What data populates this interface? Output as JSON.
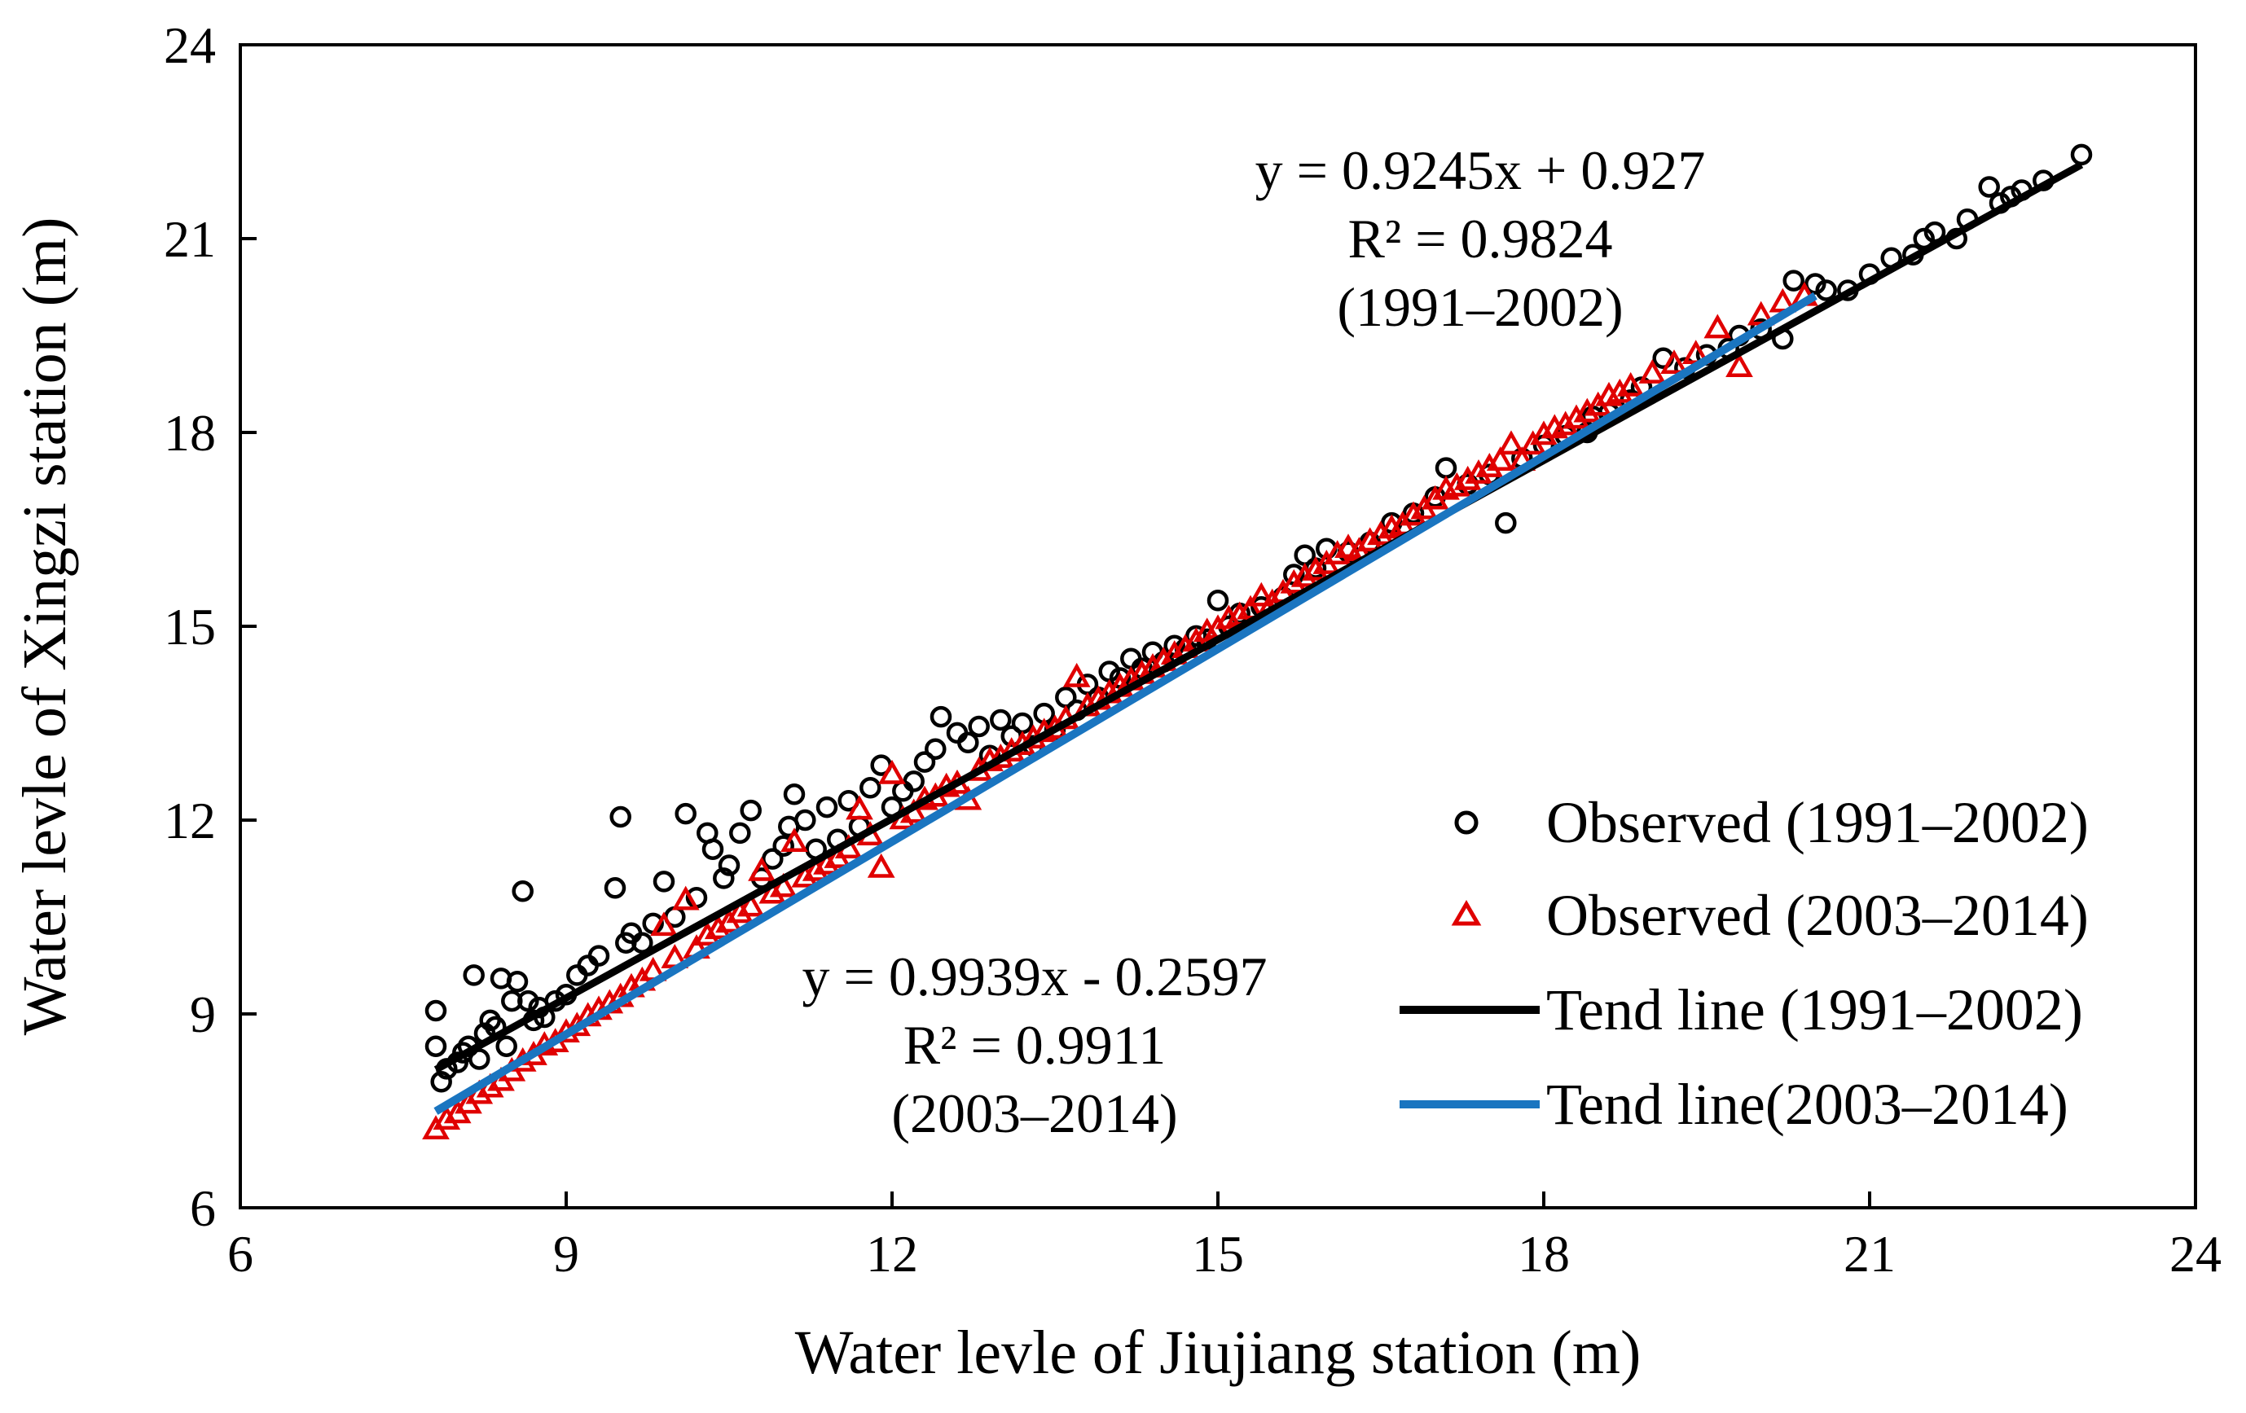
{
  "chart_data": {
    "type": "scatter",
    "title": "",
    "xlabel": "Water levle of Jiujiang station (m)",
    "ylabel": "Water levle of Xingzi station (m)",
    "xlim": [
      6,
      24
    ],
    "ylim": [
      6,
      24
    ],
    "xticks": [
      6,
      9,
      12,
      15,
      18,
      21,
      24
    ],
    "yticks": [
      6,
      9,
      12,
      15,
      18,
      21,
      24
    ],
    "grid": false,
    "legend_position": "bottom-right",
    "series": [
      {
        "name": "Observed (1991–2002)",
        "kind": "scatter",
        "marker": "circle-open",
        "color": "#000000",
        "points": [
          [
            7.8,
            9.05
          ],
          [
            7.8,
            8.5
          ],
          [
            7.85,
            7.95
          ],
          [
            7.9,
            8.15
          ],
          [
            8.0,
            8.25
          ],
          [
            8.05,
            8.4
          ],
          [
            8.1,
            8.5
          ],
          [
            8.15,
            9.6
          ],
          [
            8.2,
            8.3
          ],
          [
            8.25,
            8.7
          ],
          [
            8.3,
            8.9
          ],
          [
            8.35,
            8.8
          ],
          [
            8.4,
            9.55
          ],
          [
            8.45,
            8.5
          ],
          [
            8.5,
            9.2
          ],
          [
            8.55,
            9.5
          ],
          [
            8.6,
            10.9
          ],
          [
            8.65,
            9.2
          ],
          [
            8.7,
            8.9
          ],
          [
            8.75,
            9.1
          ],
          [
            8.8,
            8.95
          ],
          [
            8.9,
            9.2
          ],
          [
            9.0,
            9.3
          ],
          [
            9.1,
            9.6
          ],
          [
            9.2,
            9.75
          ],
          [
            9.3,
            9.9
          ],
          [
            9.45,
            10.95
          ],
          [
            9.5,
            12.05
          ],
          [
            9.55,
            10.1
          ],
          [
            9.6,
            10.25
          ],
          [
            9.7,
            10.1
          ],
          [
            9.8,
            10.4
          ],
          [
            9.9,
            11.05
          ],
          [
            10.0,
            10.5
          ],
          [
            10.1,
            12.1
          ],
          [
            10.2,
            10.8
          ],
          [
            10.3,
            11.8
          ],
          [
            10.35,
            11.55
          ],
          [
            10.45,
            11.1
          ],
          [
            10.5,
            11.3
          ],
          [
            10.6,
            11.8
          ],
          [
            10.7,
            12.15
          ],
          [
            10.8,
            11.1
          ],
          [
            10.9,
            11.4
          ],
          [
            11.0,
            11.6
          ],
          [
            11.05,
            11.9
          ],
          [
            11.1,
            12.4
          ],
          [
            11.2,
            12.0
          ],
          [
            11.3,
            11.55
          ],
          [
            11.4,
            12.2
          ],
          [
            11.5,
            11.7
          ],
          [
            11.6,
            12.3
          ],
          [
            11.7,
            11.9
          ],
          [
            11.8,
            12.5
          ],
          [
            11.9,
            12.85
          ],
          [
            12.0,
            12.2
          ],
          [
            12.1,
            12.45
          ],
          [
            12.2,
            12.6
          ],
          [
            12.3,
            12.9
          ],
          [
            12.4,
            13.1
          ],
          [
            12.45,
            13.6
          ],
          [
            12.6,
            13.35
          ],
          [
            12.7,
            13.2
          ],
          [
            12.8,
            13.45
          ],
          [
            12.9,
            13.0
          ],
          [
            13.0,
            13.55
          ],
          [
            13.1,
            13.3
          ],
          [
            13.2,
            13.5
          ],
          [
            13.3,
            13.15
          ],
          [
            13.4,
            13.65
          ],
          [
            13.5,
            13.4
          ],
          [
            13.6,
            13.9
          ],
          [
            13.7,
            13.7
          ],
          [
            13.8,
            14.1
          ],
          [
            13.9,
            13.9
          ],
          [
            14.0,
            14.3
          ],
          [
            14.1,
            14.2
          ],
          [
            14.2,
            14.5
          ],
          [
            14.3,
            14.35
          ],
          [
            14.4,
            14.6
          ],
          [
            14.5,
            14.45
          ],
          [
            14.6,
            14.7
          ],
          [
            14.7,
            14.65
          ],
          [
            14.8,
            14.85
          ],
          [
            14.9,
            14.8
          ],
          [
            15.0,
            15.4
          ],
          [
            15.1,
            15.0
          ],
          [
            15.2,
            15.2
          ],
          [
            15.4,
            15.3
          ],
          [
            15.6,
            15.45
          ],
          [
            15.7,
            15.8
          ],
          [
            15.8,
            16.1
          ],
          [
            15.9,
            15.9
          ],
          [
            16.0,
            16.2
          ],
          [
            16.2,
            16.15
          ],
          [
            16.4,
            16.3
          ],
          [
            16.6,
            16.6
          ],
          [
            16.8,
            16.75
          ],
          [
            17.0,
            17.0
          ],
          [
            17.1,
            17.45
          ],
          [
            17.3,
            17.2
          ],
          [
            17.5,
            17.35
          ],
          [
            17.65,
            16.6
          ],
          [
            17.8,
            17.6
          ],
          [
            18.0,
            17.8
          ],
          [
            18.2,
            17.95
          ],
          [
            18.4,
            18.0
          ],
          [
            18.45,
            18.25
          ],
          [
            18.6,
            18.3
          ],
          [
            18.8,
            18.5
          ],
          [
            18.9,
            18.7
          ],
          [
            19.1,
            19.15
          ],
          [
            19.3,
            19.0
          ],
          [
            19.5,
            19.2
          ],
          [
            19.7,
            19.3
          ],
          [
            19.8,
            19.5
          ],
          [
            20.0,
            19.6
          ],
          [
            20.2,
            19.45
          ],
          [
            20.3,
            20.35
          ],
          [
            20.5,
            20.3
          ],
          [
            20.6,
            20.2
          ],
          [
            20.8,
            20.2
          ],
          [
            21.0,
            20.45
          ],
          [
            21.2,
            20.7
          ],
          [
            21.4,
            20.75
          ],
          [
            21.5,
            21.0
          ],
          [
            21.6,
            21.1
          ],
          [
            21.8,
            21.0
          ],
          [
            21.9,
            21.3
          ],
          [
            22.1,
            21.8
          ],
          [
            22.2,
            21.55
          ],
          [
            22.3,
            21.65
          ],
          [
            22.4,
            21.75
          ],
          [
            22.6,
            21.9
          ],
          [
            22.95,
            22.3
          ]
        ]
      },
      {
        "name": "Observed (2003–2014)",
        "kind": "scatter",
        "marker": "triangle-open",
        "color": "#e00000",
        "points": [
          [
            7.8,
            7.2
          ],
          [
            7.9,
            7.35
          ],
          [
            8.0,
            7.45
          ],
          [
            8.1,
            7.6
          ],
          [
            8.2,
            7.75
          ],
          [
            8.3,
            7.85
          ],
          [
            8.4,
            7.95
          ],
          [
            8.5,
            8.1
          ],
          [
            8.6,
            8.25
          ],
          [
            8.7,
            8.35
          ],
          [
            8.8,
            8.5
          ],
          [
            8.9,
            8.55
          ],
          [
            9.0,
            8.7
          ],
          [
            9.1,
            8.8
          ],
          [
            9.2,
            8.95
          ],
          [
            9.3,
            9.05
          ],
          [
            9.4,
            9.15
          ],
          [
            9.5,
            9.25
          ],
          [
            9.6,
            9.4
          ],
          [
            9.7,
            9.5
          ],
          [
            9.8,
            9.65
          ],
          [
            9.9,
            10.35
          ],
          [
            10.0,
            9.85
          ],
          [
            10.1,
            10.75
          ],
          [
            10.2,
            10.0
          ],
          [
            10.3,
            10.2
          ],
          [
            10.4,
            10.3
          ],
          [
            10.5,
            10.4
          ],
          [
            10.6,
            10.55
          ],
          [
            10.7,
            10.65
          ],
          [
            10.8,
            11.2
          ],
          [
            10.9,
            10.85
          ],
          [
            11.0,
            10.95
          ],
          [
            11.1,
            11.65
          ],
          [
            11.2,
            11.1
          ],
          [
            11.3,
            11.2
          ],
          [
            11.4,
            11.3
          ],
          [
            11.5,
            11.4
          ],
          [
            11.6,
            11.55
          ],
          [
            11.7,
            12.15
          ],
          [
            11.8,
            11.75
          ],
          [
            11.9,
            11.25
          ],
          [
            12.0,
            12.7
          ],
          [
            12.1,
            12.0
          ],
          [
            12.2,
            12.1
          ],
          [
            12.3,
            12.3
          ],
          [
            12.4,
            12.35
          ],
          [
            12.5,
            12.5
          ],
          [
            12.6,
            12.55
          ],
          [
            12.7,
            12.3
          ],
          [
            12.8,
            12.75
          ],
          [
            12.9,
            12.9
          ],
          [
            13.0,
            12.95
          ],
          [
            13.1,
            13.05
          ],
          [
            13.2,
            13.15
          ],
          [
            13.3,
            13.25
          ],
          [
            13.4,
            13.35
          ],
          [
            13.5,
            13.4
          ],
          [
            13.6,
            13.55
          ],
          [
            13.7,
            14.2
          ],
          [
            13.8,
            13.75
          ],
          [
            13.9,
            13.85
          ],
          [
            14.0,
            13.95
          ],
          [
            14.1,
            14.05
          ],
          [
            14.2,
            14.15
          ],
          [
            14.3,
            14.25
          ],
          [
            14.4,
            14.35
          ],
          [
            14.5,
            14.45
          ],
          [
            14.6,
            14.55
          ],
          [
            14.7,
            14.65
          ],
          [
            14.8,
            14.75
          ],
          [
            14.9,
            14.9
          ],
          [
            15.0,
            14.95
          ],
          [
            15.1,
            15.1
          ],
          [
            15.2,
            15.15
          ],
          [
            15.3,
            15.25
          ],
          [
            15.4,
            15.45
          ],
          [
            15.5,
            15.35
          ],
          [
            15.6,
            15.5
          ],
          [
            15.7,
            15.65
          ],
          [
            15.8,
            15.75
          ],
          [
            15.9,
            15.85
          ],
          [
            16.0,
            15.95
          ],
          [
            16.1,
            16.1
          ],
          [
            16.2,
            16.2
          ],
          [
            16.3,
            16.15
          ],
          [
            16.4,
            16.3
          ],
          [
            16.5,
            16.4
          ],
          [
            16.6,
            16.5
          ],
          [
            16.7,
            16.55
          ],
          [
            16.8,
            16.7
          ],
          [
            16.9,
            16.8
          ],
          [
            17.0,
            16.95
          ],
          [
            17.1,
            17.1
          ],
          [
            17.2,
            17.15
          ],
          [
            17.3,
            17.25
          ],
          [
            17.4,
            17.35
          ],
          [
            17.5,
            17.45
          ],
          [
            17.6,
            17.55
          ],
          [
            17.7,
            17.8
          ],
          [
            17.8,
            17.55
          ],
          [
            17.9,
            17.8
          ],
          [
            18.0,
            17.95
          ],
          [
            18.1,
            18.05
          ],
          [
            18.2,
            18.1
          ],
          [
            18.3,
            18.2
          ],
          [
            18.4,
            18.3
          ],
          [
            18.5,
            18.4
          ],
          [
            18.6,
            18.55
          ],
          [
            18.7,
            18.6
          ],
          [
            18.8,
            18.7
          ],
          [
            19.0,
            18.9
          ],
          [
            19.2,
            19.05
          ],
          [
            19.4,
            19.2
          ],
          [
            19.6,
            19.6
          ],
          [
            19.8,
            19.0
          ],
          [
            20.0,
            19.8
          ],
          [
            20.2,
            20.0
          ],
          [
            20.4,
            20.1
          ]
        ]
      },
      {
        "name": "Tend line (1991–2002)",
        "kind": "line",
        "color": "#000000",
        "equation": "y = 0.9245x + 0.927",
        "r2": "R² = 0.9824",
        "period": "(1991–2002)",
        "slope": 0.9245,
        "intercept": 0.927,
        "x_range": [
          7.8,
          22.95
        ]
      },
      {
        "name": "Tend line(2003–2014)",
        "kind": "line",
        "color": "#1a75c0",
        "equation": "y = 0.9939x - 0.2597",
        "r2": "R² = 0.9911",
        "period": "(2003–2014)",
        "slope": 0.9939,
        "intercept": -0.2597,
        "x_range": [
          7.8,
          20.5
        ]
      }
    ]
  }
}
